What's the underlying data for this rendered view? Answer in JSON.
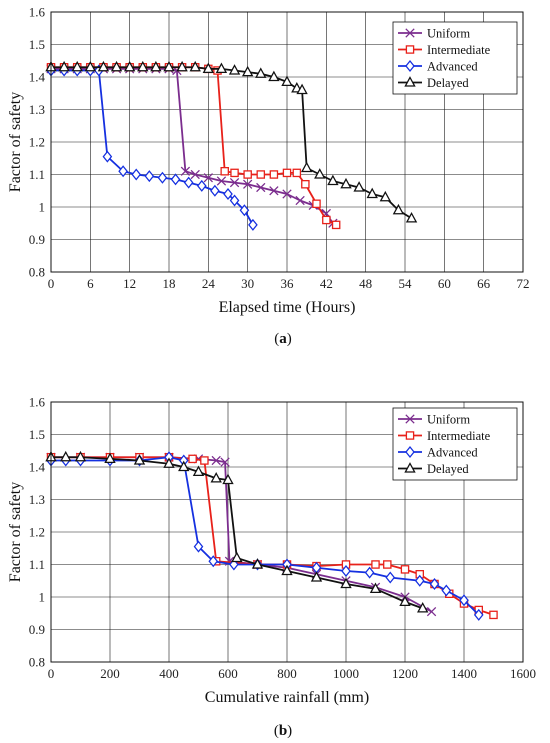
{
  "panels": [
    {
      "caption_open": "(",
      "caption_letter": "a",
      "caption_close": ")",
      "chart_data": {
        "type": "line",
        "xlabel": "Elapsed time (Hours)",
        "ylabel": "Factor of safety",
        "xlim": [
          0,
          72
        ],
        "ylim": [
          0.8,
          1.6
        ],
        "xticks": [
          0,
          6,
          12,
          18,
          24,
          30,
          36,
          42,
          48,
          54,
          60,
          66,
          72
        ],
        "yticks": [
          0.8,
          0.9,
          1.0,
          1.1,
          1.2,
          1.3,
          1.4,
          1.5,
          1.6
        ],
        "ytick_labels": [
          "0.8",
          "0.9",
          "1",
          "1.1",
          "1.2",
          "1.3",
          "1.4",
          "1.5",
          "1.6"
        ],
        "grid": true,
        "legend_position": "top-right",
        "series": [
          {
            "name": "Uniform",
            "color": "#7b2d8e",
            "marker": "x",
            "points": [
              [
                0,
                1.425
              ],
              [
                2,
                1.425
              ],
              [
                4,
                1.425
              ],
              [
                6,
                1.425
              ],
              [
                8,
                1.425
              ],
              [
                10,
                1.425
              ],
              [
                12,
                1.425
              ],
              [
                14,
                1.425
              ],
              [
                16,
                1.425
              ],
              [
                18,
                1.425
              ],
              [
                19.2,
                1.42
              ],
              [
                20.5,
                1.11
              ],
              [
                22,
                1.1
              ],
              [
                24,
                1.09
              ],
              [
                26,
                1.08
              ],
              [
                28,
                1.075
              ],
              [
                30,
                1.07
              ],
              [
                32,
                1.06
              ],
              [
                34,
                1.05
              ],
              [
                36,
                1.04
              ],
              [
                38,
                1.02
              ],
              [
                40,
                1.005
              ],
              [
                42,
                0.98
              ],
              [
                43,
                0.95
              ]
            ]
          },
          {
            "name": "Intermediate",
            "color": "#e8211a",
            "marker": "square",
            "points": [
              [
                0,
                1.43
              ],
              [
                2,
                1.43
              ],
              [
                4,
                1.43
              ],
              [
                6,
                1.43
              ],
              [
                8,
                1.43
              ],
              [
                10,
                1.43
              ],
              [
                12,
                1.43
              ],
              [
                14,
                1.43
              ],
              [
                16,
                1.43
              ],
              [
                18,
                1.43
              ],
              [
                20,
                1.43
              ],
              [
                22,
                1.43
              ],
              [
                24,
                1.425
              ],
              [
                25.4,
                1.42
              ],
              [
                26.5,
                1.11
              ],
              [
                28,
                1.105
              ],
              [
                30,
                1.1
              ],
              [
                32,
                1.1
              ],
              [
                34,
                1.1
              ],
              [
                36,
                1.105
              ],
              [
                37.5,
                1.105
              ],
              [
                38.8,
                1.07
              ],
              [
                40.5,
                1.01
              ],
              [
                42,
                0.96
              ],
              [
                43.5,
                0.945
              ]
            ]
          },
          {
            "name": "Advanced",
            "color": "#1530e0",
            "marker": "diamond",
            "points": [
              [
                0,
                1.42
              ],
              [
                2,
                1.42
              ],
              [
                4,
                1.42
              ],
              [
                6,
                1.42
              ],
              [
                7.3,
                1.42
              ],
              [
                8.6,
                1.155
              ],
              [
                11,
                1.11
              ],
              [
                13,
                1.1
              ],
              [
                15,
                1.095
              ],
              [
                17,
                1.09
              ],
              [
                19,
                1.085
              ],
              [
                21,
                1.075
              ],
              [
                23,
                1.065
              ],
              [
                25,
                1.05
              ],
              [
                27,
                1.04
              ],
              [
                28,
                1.02
              ],
              [
                29.5,
                0.99
              ],
              [
                30.8,
                0.945
              ]
            ]
          },
          {
            "name": "Delayed",
            "color": "#111111",
            "marker": "triangle",
            "points": [
              [
                0,
                1.43
              ],
              [
                2,
                1.43
              ],
              [
                4,
                1.43
              ],
              [
                6,
                1.43
              ],
              [
                8,
                1.43
              ],
              [
                10,
                1.43
              ],
              [
                12,
                1.43
              ],
              [
                14,
                1.43
              ],
              [
                16,
                1.43
              ],
              [
                18,
                1.43
              ],
              [
                20,
                1.43
              ],
              [
                22,
                1.43
              ],
              [
                24,
                1.425
              ],
              [
                26,
                1.425
              ],
              [
                28,
                1.42
              ],
              [
                30,
                1.415
              ],
              [
                32,
                1.41
              ],
              [
                34,
                1.4
              ],
              [
                36,
                1.385
              ],
              [
                37.5,
                1.365
              ],
              [
                38.3,
                1.36
              ],
              [
                39,
                1.12
              ],
              [
                41,
                1.1
              ],
              [
                43,
                1.08
              ],
              [
                45,
                1.07
              ],
              [
                47,
                1.06
              ],
              [
                49,
                1.04
              ],
              [
                51,
                1.03
              ],
              [
                53,
                0.99
              ],
              [
                55,
                0.965
              ]
            ]
          }
        ]
      }
    },
    {
      "caption_open": "(",
      "caption_letter": "b",
      "caption_close": ")",
      "chart_data": {
        "type": "line",
        "xlabel": "Cumulative rainfall (mm)",
        "ylabel": "Factor of safety",
        "xlim": [
          0,
          1600
        ],
        "ylim": [
          0.8,
          1.6
        ],
        "xticks": [
          0,
          200,
          400,
          600,
          800,
          1000,
          1200,
          1400,
          1600
        ],
        "yticks": [
          0.8,
          0.9,
          1.0,
          1.1,
          1.2,
          1.3,
          1.4,
          1.5,
          1.6
        ],
        "ytick_labels": [
          "0.8",
          "0.9",
          "1",
          "1.1",
          "1.2",
          "1.3",
          "1.4",
          "1.5",
          "1.6"
        ],
        "grid": true,
        "legend_position": "center-right",
        "series": [
          {
            "name": "Uniform",
            "color": "#7b2d8e",
            "marker": "x",
            "points": [
              [
                0,
                1.43
              ],
              [
                100,
                1.43
              ],
              [
                200,
                1.43
              ],
              [
                300,
                1.43
              ],
              [
                400,
                1.43
              ],
              [
                500,
                1.425
              ],
              [
                560,
                1.42
              ],
              [
                590,
                1.415
              ],
              [
                605,
                1.11
              ],
              [
                700,
                1.1
              ],
              [
                800,
                1.09
              ],
              [
                900,
                1.07
              ],
              [
                1000,
                1.05
              ],
              [
                1100,
                1.03
              ],
              [
                1200,
                1.0
              ],
              [
                1290,
                0.955
              ]
            ]
          },
          {
            "name": "Intermediate",
            "color": "#e8211a",
            "marker": "square",
            "points": [
              [
                0,
                1.43
              ],
              [
                100,
                1.43
              ],
              [
                200,
                1.43
              ],
              [
                300,
                1.43
              ],
              [
                400,
                1.43
              ],
              [
                480,
                1.425
              ],
              [
                520,
                1.42
              ],
              [
                560,
                1.11
              ],
              [
                700,
                1.1
              ],
              [
                800,
                1.1
              ],
              [
                900,
                1.095
              ],
              [
                1000,
                1.1
              ],
              [
                1100,
                1.1
              ],
              [
                1140,
                1.1
              ],
              [
                1200,
                1.085
              ],
              [
                1250,
                1.07
              ],
              [
                1300,
                1.04
              ],
              [
                1350,
                1.01
              ],
              [
                1400,
                0.98
              ],
              [
                1450,
                0.96
              ],
              [
                1500,
                0.945
              ]
            ]
          },
          {
            "name": "Advanced",
            "color": "#1530e0",
            "marker": "diamond",
            "points": [
              [
                0,
                1.42
              ],
              [
                50,
                1.42
              ],
              [
                100,
                1.42
              ],
              [
                200,
                1.42
              ],
              [
                300,
                1.42
              ],
              [
                400,
                1.43
              ],
              [
                450,
                1.42
              ],
              [
                500,
                1.155
              ],
              [
                550,
                1.11
              ],
              [
                620,
                1.1
              ],
              [
                700,
                1.1
              ],
              [
                800,
                1.1
              ],
              [
                900,
                1.09
              ],
              [
                1000,
                1.08
              ],
              [
                1080,
                1.075
              ],
              [
                1150,
                1.06
              ],
              [
                1250,
                1.05
              ],
              [
                1300,
                1.04
              ],
              [
                1340,
                1.02
              ],
              [
                1400,
                0.99
              ],
              [
                1450,
                0.945
              ]
            ]
          },
          {
            "name": "Delayed",
            "color": "#111111",
            "marker": "triangle",
            "points": [
              [
                0,
                1.43
              ],
              [
                50,
                1.43
              ],
              [
                100,
                1.43
              ],
              [
                200,
                1.425
              ],
              [
                300,
                1.42
              ],
              [
                400,
                1.41
              ],
              [
                450,
                1.4
              ],
              [
                500,
                1.385
              ],
              [
                560,
                1.365
              ],
              [
                600,
                1.36
              ],
              [
                630,
                1.12
              ],
              [
                700,
                1.1
              ],
              [
                800,
                1.08
              ],
              [
                900,
                1.06
              ],
              [
                1000,
                1.04
              ],
              [
                1100,
                1.025
              ],
              [
                1200,
                0.985
              ],
              [
                1260,
                0.965
              ]
            ]
          }
        ]
      }
    }
  ]
}
